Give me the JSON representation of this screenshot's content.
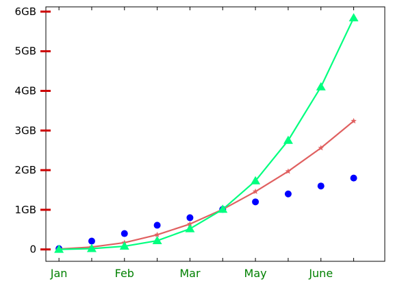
{
  "chart_data": {
    "type": "line",
    "x_tick_labels": [
      {
        "x": 1,
        "label": "Jan"
      },
      {
        "x": 3,
        "label": "Feb"
      },
      {
        "x": 5,
        "label": "Mar"
      },
      {
        "x": 7,
        "label": "May"
      },
      {
        "x": 9,
        "label": "June"
      }
    ],
    "y_tick_labels": [
      {
        "y": 0,
        "label": "0"
      },
      {
        "y": 1,
        "label": "1GB"
      },
      {
        "y": 2,
        "label": "2GB"
      },
      {
        "y": 3,
        "label": "3GB"
      },
      {
        "y": 4,
        "label": "4GB"
      },
      {
        "y": 5,
        "label": "5GB"
      },
      {
        "y": 6,
        "label": "6GB"
      }
    ],
    "xlim": [
      0.6,
      10.95
    ],
    "ylim": [
      -0.3,
      6.12
    ],
    "grid": false,
    "legend": "none",
    "x_tick_color": "#008000",
    "y_tick_color": "#cc0000",
    "series": [
      {
        "marker": "circle",
        "line": false,
        "color": "#0000ff",
        "x": [
          1,
          2,
          3,
          4,
          5,
          6,
          7,
          8,
          9,
          10
        ],
        "values": [
          0.02,
          0.21,
          0.4,
          0.61,
          0.8,
          1.01,
          1.2,
          1.4,
          1.6,
          1.8
        ]
      },
      {
        "marker": "star",
        "line": true,
        "color": "#e06060",
        "x": [
          1,
          2,
          3,
          4,
          5,
          6,
          7,
          8,
          9,
          10
        ],
        "values": [
          0.01,
          0.06,
          0.17,
          0.37,
          0.64,
          1.01,
          1.46,
          1.97,
          2.56,
          3.24
        ]
      },
      {
        "marker": "triangle",
        "line": true,
        "color": "#00ff7f",
        "x": [
          1,
          2,
          3,
          4,
          5,
          6,
          7,
          8,
          9,
          10
        ],
        "values": [
          0.0,
          0.02,
          0.08,
          0.22,
          0.52,
          1.01,
          1.73,
          2.75,
          4.1,
          5.84
        ]
      }
    ]
  }
}
